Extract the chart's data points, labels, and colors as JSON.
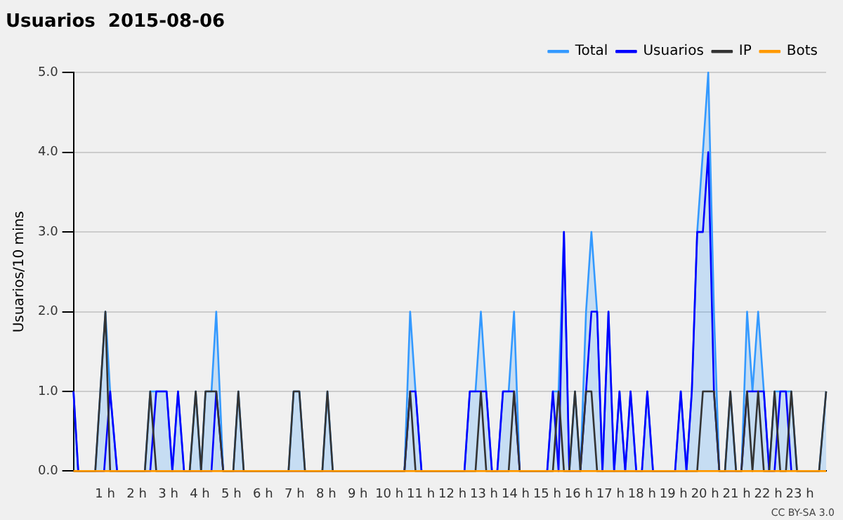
{
  "chart_data": {
    "type": "line",
    "title": "Usuarios  2015-08-06",
    "ylabel": "Usuarios/10 mins",
    "annotations": [
      "CC BY-SA 3.0"
    ],
    "xlim": [
      0,
      23.833
    ],
    "ylim": [
      0,
      5
    ],
    "xticks": [
      {
        "value": 1,
        "label": "1 h"
      },
      {
        "value": 2,
        "label": "2 h"
      },
      {
        "value": 3,
        "label": "3 h"
      },
      {
        "value": 4,
        "label": "4 h"
      },
      {
        "value": 5,
        "label": "5 h"
      },
      {
        "value": 6,
        "label": "6 h"
      },
      {
        "value": 7,
        "label": "7 h"
      },
      {
        "value": 8,
        "label": "8 h"
      },
      {
        "value": 9,
        "label": "9 h"
      },
      {
        "value": 10,
        "label": "10 h"
      },
      {
        "value": 11,
        "label": "11 h"
      },
      {
        "value": 12,
        "label": "12 h"
      },
      {
        "value": 13,
        "label": "13 h"
      },
      {
        "value": 14,
        "label": "14 h"
      },
      {
        "value": 15,
        "label": "15 h"
      },
      {
        "value": 16,
        "label": "16 h"
      },
      {
        "value": 17,
        "label": "17 h"
      },
      {
        "value": 18,
        "label": "18 h"
      },
      {
        "value": 19,
        "label": "19 h"
      },
      {
        "value": 20,
        "label": "20 h"
      },
      {
        "value": 21,
        "label": "21 h"
      },
      {
        "value": 22,
        "label": "22 h"
      },
      {
        "value": 23,
        "label": "23 h"
      }
    ],
    "yticks": [
      {
        "value": 0,
        "label": "0.0"
      },
      {
        "value": 1,
        "label": "1.0"
      },
      {
        "value": 2,
        "label": "2.0"
      },
      {
        "value": 3,
        "label": "3.0"
      },
      {
        "value": 4,
        "label": "4.0"
      },
      {
        "value": 5,
        "label": "5.0"
      }
    ],
    "grid": "y",
    "legend": "top right",
    "marker": "none",
    "line_style": "solid",
    "series": [
      {
        "name": "Total",
        "type": "area",
        "color": "#3399ff",
        "x": [
          0,
          0.15,
          0.69,
          1.01,
          1.16,
          1.38,
          2.26,
          2.43,
          2.95,
          3.13,
          3.31,
          3.5,
          3.68,
          3.87,
          4.04,
          4.18,
          4.37,
          4.52,
          4.74,
          5.06,
          5.22,
          5.39,
          6.81,
          6.97,
          7.15,
          7.33,
          7.88,
          8.04,
          8.21,
          10.48,
          10.66,
          10.83,
          11.02,
          12.38,
          12.55,
          12.73,
          12.9,
          13.07,
          13.25,
          13.42,
          13.6,
          13.78,
          13.95,
          14.13,
          15.0,
          15.18,
          15.36,
          15.53,
          15.7,
          15.88,
          16.05,
          16.23,
          16.4,
          16.58,
          16.75,
          16.94,
          17.12,
          17.29,
          17.47,
          17.64,
          17.82,
          18.0,
          18.17,
          18.35,
          19.05,
          19.23,
          19.41,
          19.58,
          19.75,
          19.93,
          20.1,
          20.28,
          20.45,
          20.63,
          20.8,
          20.98,
          21.15,
          21.33,
          21.5,
          21.68,
          21.86,
          22.03,
          22.2,
          22.38,
          22.56,
          22.73,
          22.91,
          23.61,
          23.833
        ],
        "values": [
          1,
          0,
          0,
          2,
          1,
          0,
          0,
          1,
          1,
          0,
          1,
          0,
          0,
          1,
          0,
          1,
          1,
          2,
          0,
          0,
          1,
          0,
          0,
          1,
          1,
          0,
          0,
          1,
          0,
          0,
          2,
          1,
          0,
          0,
          1,
          1,
          2,
          1,
          0,
          0,
          1,
          1,
          2,
          0,
          0,
          1,
          1,
          3,
          0,
          1,
          0,
          2,
          3,
          2,
          0,
          2,
          0,
          1,
          0,
          1,
          0,
          0,
          1,
          0,
          0,
          1,
          0,
          1,
          3,
          4,
          5,
          2,
          0,
          0,
          1,
          0,
          0,
          2,
          1,
          2,
          1,
          0,
          1,
          1,
          1,
          1,
          0,
          0,
          1
        ]
      },
      {
        "name": "Usuarios",
        "type": "line",
        "color": "#0000ff",
        "x": [
          0,
          0.15,
          0.97,
          1.16,
          1.38,
          2.43,
          2.62,
          2.95,
          3.13,
          3.31,
          3.5,
          4.37,
          4.52,
          4.74,
          10.48,
          10.66,
          10.83,
          11.02,
          12.38,
          12.55,
          13.07,
          13.25,
          13.42,
          13.6,
          13.95,
          14.13,
          15.0,
          15.18,
          15.36,
          15.53,
          15.7,
          16.05,
          16.23,
          16.4,
          16.58,
          16.75,
          16.94,
          17.12,
          17.29,
          17.47,
          17.64,
          17.82,
          18.0,
          18.17,
          18.35,
          19.05,
          19.23,
          19.41,
          19.58,
          19.75,
          19.93,
          20.1,
          20.28,
          20.45,
          21.15,
          21.33,
          21.86,
          22.03,
          22.2,
          22.38,
          22.56,
          22.73
        ],
        "values": [
          1,
          0,
          0,
          1,
          0,
          0,
          1,
          1,
          0,
          1,
          0,
          0,
          1,
          0,
          0,
          1,
          1,
          0,
          0,
          1,
          1,
          0,
          0,
          1,
          1,
          0,
          0,
          1,
          0,
          3,
          0,
          0,
          1,
          2,
          2,
          0,
          2,
          0,
          1,
          0,
          1,
          0,
          0,
          1,
          0,
          0,
          1,
          0,
          1,
          3,
          3,
          4,
          1,
          0,
          0,
          1,
          1,
          0,
          0,
          1,
          1,
          0
        ]
      },
      {
        "name": "IP",
        "type": "line",
        "color": "#333333",
        "x": [
          0,
          0.69,
          1.01,
          1.16,
          2.26,
          2.43,
          2.62,
          3.68,
          3.87,
          4.04,
          4.18,
          4.52,
          4.74,
          5.06,
          5.22,
          5.39,
          6.81,
          6.97,
          7.15,
          7.33,
          7.88,
          8.04,
          8.21,
          10.48,
          10.66,
          10.83,
          12.73,
          12.9,
          13.07,
          13.78,
          13.95,
          14.13,
          15.18,
          15.36,
          15.53,
          15.7,
          15.88,
          16.05,
          16.23,
          16.4,
          16.58,
          19.75,
          19.93,
          20.28,
          20.45,
          20.63,
          20.8,
          20.98,
          21.15,
          21.33,
          21.5,
          21.68,
          21.86,
          22.03,
          22.2,
          22.38,
          22.56,
          22.73,
          22.91,
          23.61,
          23.833
        ],
        "values": [
          0,
          0,
          2,
          0,
          0,
          1,
          0,
          0,
          1,
          0,
          1,
          1,
          0,
          0,
          1,
          0,
          0,
          1,
          1,
          0,
          0,
          1,
          0,
          0,
          1,
          0,
          0,
          1,
          0,
          0,
          1,
          0,
          0,
          1,
          0,
          0,
          1,
          0,
          1,
          1,
          0,
          0,
          1,
          1,
          0,
          0,
          1,
          0,
          0,
          1,
          0,
          1,
          0,
          0,
          1,
          0,
          0,
          1,
          0,
          0,
          1
        ]
      },
      {
        "name": "Bots",
        "type": "line",
        "color": "#ff9900",
        "x": [
          0,
          23.833
        ],
        "values": [
          0,
          0
        ]
      }
    ]
  }
}
